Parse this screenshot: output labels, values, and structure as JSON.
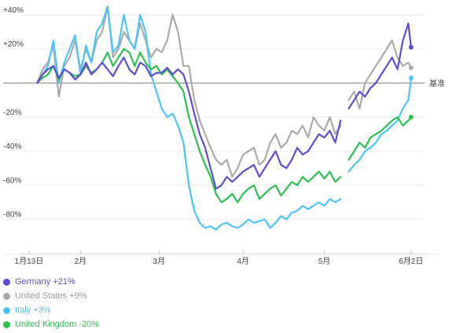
{
  "chart_data": {
    "type": "line",
    "title": "",
    "xlabel": "",
    "ylabel": "",
    "baseline_label": "基准",
    "ylim": [
      -100,
      45
    ],
    "x_ticks": [
      {
        "day": 12,
        "label": "1月13日"
      },
      {
        "day": 31,
        "label": "2月"
      },
      {
        "day": 60,
        "label": "3月"
      },
      {
        "day": 91,
        "label": "4月"
      },
      {
        "day": 121,
        "label": "5月"
      },
      {
        "day": 153,
        "label": "6月2日"
      }
    ],
    "y_ticks": [
      {
        "value": 40,
        "label": "+40%"
      },
      {
        "value": 20,
        "label": "+20%"
      },
      {
        "value": -20,
        "label": "-20%"
      },
      {
        "value": -40,
        "label": "-40%"
      },
      {
        "value": -60,
        "label": "-60%"
      },
      {
        "value": -80,
        "label": "-80%"
      }
    ],
    "grid": true,
    "legend_position": "bottom-left",
    "series": [
      {
        "name": "Germany",
        "legend_label": "Germany +21%",
        "color": "#5b4fcf",
        "x": [
          15,
          17,
          19,
          21,
          23,
          25,
          27,
          29,
          31,
          33,
          35,
          37,
          39,
          41,
          43,
          45,
          47,
          49,
          51,
          53,
          55,
          57,
          59,
          61,
          63,
          65,
          67,
          69,
          71,
          73,
          75,
          77,
          79,
          81,
          83,
          85,
          87,
          89,
          91,
          93,
          95,
          97,
          99,
          101,
          103,
          105,
          107,
          109,
          111,
          113,
          115,
          117,
          119,
          121,
          123,
          125,
          127,
          130,
          132,
          134,
          136,
          138,
          140,
          142,
          144,
          146,
          148,
          150,
          152,
          153
        ],
        "y": [
          0,
          5,
          8,
          10,
          3,
          8,
          6,
          2,
          5,
          12,
          5,
          8,
          12,
          8,
          4,
          10,
          15,
          8,
          5,
          12,
          10,
          4,
          6,
          6,
          9,
          5,
          8,
          5,
          -5,
          -18,
          -30,
          -38,
          -50,
          -62,
          -60,
          -55,
          -58,
          -55,
          -52,
          -50,
          -48,
          -55,
          -50,
          -45,
          -40,
          -48,
          -50,
          -45,
          -38,
          -42,
          -40,
          -35,
          -30,
          -32,
          -28,
          -35,
          -22,
          -15,
          -10,
          -5,
          -8,
          -3,
          0,
          5,
          10,
          15,
          8,
          25,
          35,
          21
        ]
      },
      {
        "name": "United States",
        "legend_label": "United States +9%",
        "color": "#aaaaaa",
        "x": [
          15,
          17,
          19,
          21,
          23,
          25,
          27,
          29,
          31,
          33,
          35,
          37,
          39,
          41,
          43,
          45,
          47,
          49,
          51,
          53,
          55,
          57,
          59,
          61,
          63,
          65,
          67,
          69,
          71,
          73,
          75,
          77,
          79,
          81,
          83,
          85,
          87,
          89,
          91,
          93,
          95,
          97,
          99,
          101,
          103,
          105,
          107,
          109,
          111,
          113,
          115,
          117,
          119,
          121,
          123,
          125,
          127,
          130,
          132,
          134,
          136,
          138,
          140,
          142,
          144,
          146,
          148,
          150,
          152,
          153
        ],
        "y": [
          0,
          8,
          12,
          22,
          -8,
          10,
          15,
          25,
          8,
          20,
          12,
          25,
          30,
          45,
          15,
          20,
          30,
          25,
          20,
          35,
          25,
          15,
          20,
          18,
          25,
          40,
          30,
          10,
          10,
          -10,
          -22,
          -30,
          -38,
          -45,
          -48,
          -45,
          -55,
          -50,
          -42,
          -40,
          -38,
          -48,
          -45,
          -35,
          -30,
          -38,
          -35,
          -28,
          -30,
          -25,
          -32,
          -20,
          -25,
          -28,
          -20,
          -30,
          -25,
          -10,
          -5,
          -15,
          0,
          5,
          10,
          15,
          20,
          25,
          15,
          10,
          12,
          9
        ]
      },
      {
        "name": "Italy",
        "legend_label": "Italy +3%",
        "color": "#4fc3f7",
        "x": [
          15,
          17,
          19,
          21,
          23,
          25,
          27,
          29,
          31,
          33,
          35,
          37,
          39,
          41,
          43,
          45,
          47,
          49,
          51,
          53,
          55,
          57,
          59,
          61,
          63,
          65,
          67,
          69,
          71,
          73,
          75,
          77,
          79,
          81,
          83,
          85,
          87,
          89,
          91,
          93,
          95,
          97,
          99,
          101,
          103,
          105,
          107,
          109,
          111,
          113,
          115,
          117,
          119,
          121,
          123,
          125,
          127,
          130,
          132,
          134,
          136,
          138,
          140,
          142,
          144,
          146,
          148,
          150,
          152,
          153
        ],
        "y": [
          0,
          5,
          10,
          25,
          0,
          12,
          20,
          28,
          5,
          22,
          12,
          30,
          35,
          45,
          18,
          22,
          40,
          25,
          20,
          40,
          30,
          5,
          -5,
          -15,
          -20,
          -18,
          -25,
          -35,
          -60,
          -75,
          -82,
          -85,
          -84,
          -86,
          -83,
          -82,
          -84,
          -85,
          -83,
          -80,
          -82,
          -81,
          -80,
          -85,
          -82,
          -78,
          -80,
          -76,
          -75,
          -72,
          -74,
          -72,
          -70,
          -72,
          -68,
          -70,
          -68,
          -52,
          -48,
          -45,
          -40,
          -38,
          -35,
          -30,
          -28,
          -25,
          -22,
          -15,
          -10,
          3
        ]
      },
      {
        "name": "United Kingdom",
        "legend_label": "United Kingdom -20%",
        "color": "#2ebf4f",
        "x": [
          15,
          17,
          19,
          21,
          23,
          25,
          27,
          29,
          31,
          33,
          35,
          37,
          39,
          41,
          43,
          45,
          47,
          49,
          51,
          53,
          55,
          57,
          59,
          61,
          63,
          65,
          67,
          69,
          71,
          73,
          75,
          77,
          79,
          81,
          83,
          85,
          87,
          89,
          91,
          93,
          95,
          97,
          99,
          101,
          103,
          105,
          107,
          109,
          111,
          113,
          115,
          117,
          119,
          121,
          123,
          125,
          127,
          130,
          132,
          134,
          136,
          138,
          140,
          142,
          144,
          146,
          148,
          150,
          152,
          153
        ],
        "y": [
          0,
          3,
          5,
          10,
          2,
          8,
          6,
          4,
          5,
          10,
          6,
          8,
          12,
          18,
          10,
          15,
          20,
          18,
          10,
          18,
          12,
          8,
          10,
          5,
          8,
          4,
          0,
          -5,
          -20,
          -30,
          -40,
          -48,
          -55,
          -65,
          -70,
          -68,
          -65,
          -70,
          -65,
          -62,
          -60,
          -68,
          -65,
          -62,
          -60,
          -66,
          -62,
          -58,
          -60,
          -55,
          -58,
          -55,
          -52,
          -56,
          -52,
          -58,
          -55,
          -45,
          -40,
          -35,
          -38,
          -32,
          -30,
          -28,
          -25,
          -22,
          -20,
          -25,
          -22,
          -20
        ]
      }
    ]
  }
}
